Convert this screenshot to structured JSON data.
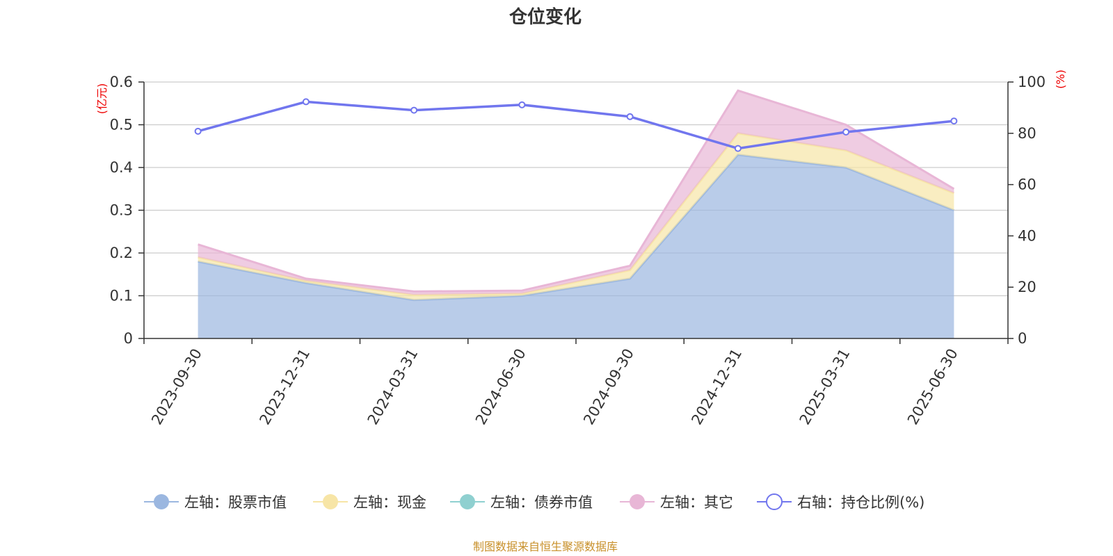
{
  "chart_data": {
    "type": "area",
    "title": "仓位变化",
    "categories": [
      "2023-09-30",
      "2023-12-31",
      "2024-03-31",
      "2024-06-30",
      "2024-09-30",
      "2024-12-31",
      "2025-03-31",
      "2025-06-30"
    ],
    "left_axis": {
      "unit": "(亿元)",
      "ylim": [
        0,
        0.6
      ],
      "ticks": [
        "0",
        "0.1",
        "0.2",
        "0.3",
        "0.4",
        "0.5",
        "0.6"
      ]
    },
    "right_axis": {
      "unit": "(%)",
      "ylim": [
        0,
        100
      ],
      "ticks": [
        "0",
        "20",
        "40",
        "60",
        "80",
        "100"
      ]
    },
    "stacked": true,
    "series": [
      {
        "name": "左轴：股票市值",
        "axis": "left",
        "color": "#9bb7e0",
        "values": [
          0.18,
          0.13,
          0.09,
          0.1,
          0.14,
          0.43,
          0.4,
          0.3
        ]
      },
      {
        "name": "左轴：现金",
        "axis": "left",
        "color": "#f7e5a6",
        "values": [
          0.01,
          0.005,
          0.012,
          0.005,
          0.02,
          0.05,
          0.04,
          0.04
        ]
      },
      {
        "name": "左轴：债券市值",
        "axis": "left",
        "color": "#8fd0d0",
        "values": [
          0,
          0,
          0,
          0,
          0,
          0,
          0,
          0
        ]
      },
      {
        "name": "左轴：其它",
        "axis": "left",
        "color": "#e8b6d6",
        "values": [
          0.03,
          0.005,
          0.008,
          0.007,
          0.01,
          0.1,
          0.06,
          0.01
        ]
      },
      {
        "name": "右轴：持仓比例(%)",
        "axis": "right",
        "type": "line",
        "color": "#7176ee",
        "values": [
          80.8,
          92.3,
          89.0,
          91.1,
          86.5,
          74.1,
          80.5,
          84.8
        ]
      }
    ],
    "grid": true,
    "legend_position": "bottom"
  },
  "footer": {
    "source": "制图数据来自恒生聚源数据库"
  }
}
